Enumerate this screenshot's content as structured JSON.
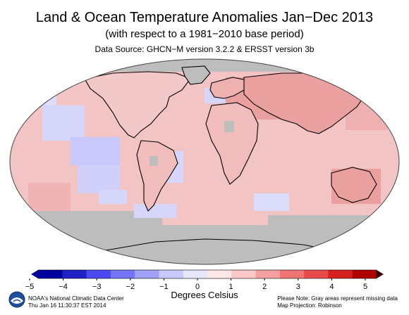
{
  "header": {
    "title": "Land & Ocean Temperature Anomalies Jan−Dec 2013",
    "subtitle": "(with respect to a 1981−2010 base period)",
    "source": "Data Source: GHCN−M version 3.2.2 & ERSST version 3b"
  },
  "map": {
    "projection": "Robinson",
    "missing_color": "#bdbdbd",
    "ocean_base_color": "#f2c4c4"
  },
  "colorbar": {
    "title": "Degrees Celsius",
    "ticks": [
      "−5",
      "−4",
      "−3",
      "−2",
      "−1",
      "0",
      "1",
      "2",
      "3",
      "4",
      "5"
    ],
    "range": [
      -5,
      5
    ],
    "colors": [
      "#0000a0",
      "#2020c8",
      "#4a4af0",
      "#7474f6",
      "#a0a0f8",
      "#c8c8fa",
      "#e6e6fc",
      "#fde8e8",
      "#f9c8c8",
      "#f4a0a0",
      "#ef7474",
      "#e84a4a",
      "#d62020",
      "#b00000"
    ]
  },
  "footer": {
    "left_line1": "NOAA's National Climatic Data Center",
    "left_line2": "Thu Jan 16 11:30:37 EST 2014",
    "right_line1": "Please Note: Gray areas represent missing data",
    "right_line2": "Map Projection: Robinson"
  }
}
